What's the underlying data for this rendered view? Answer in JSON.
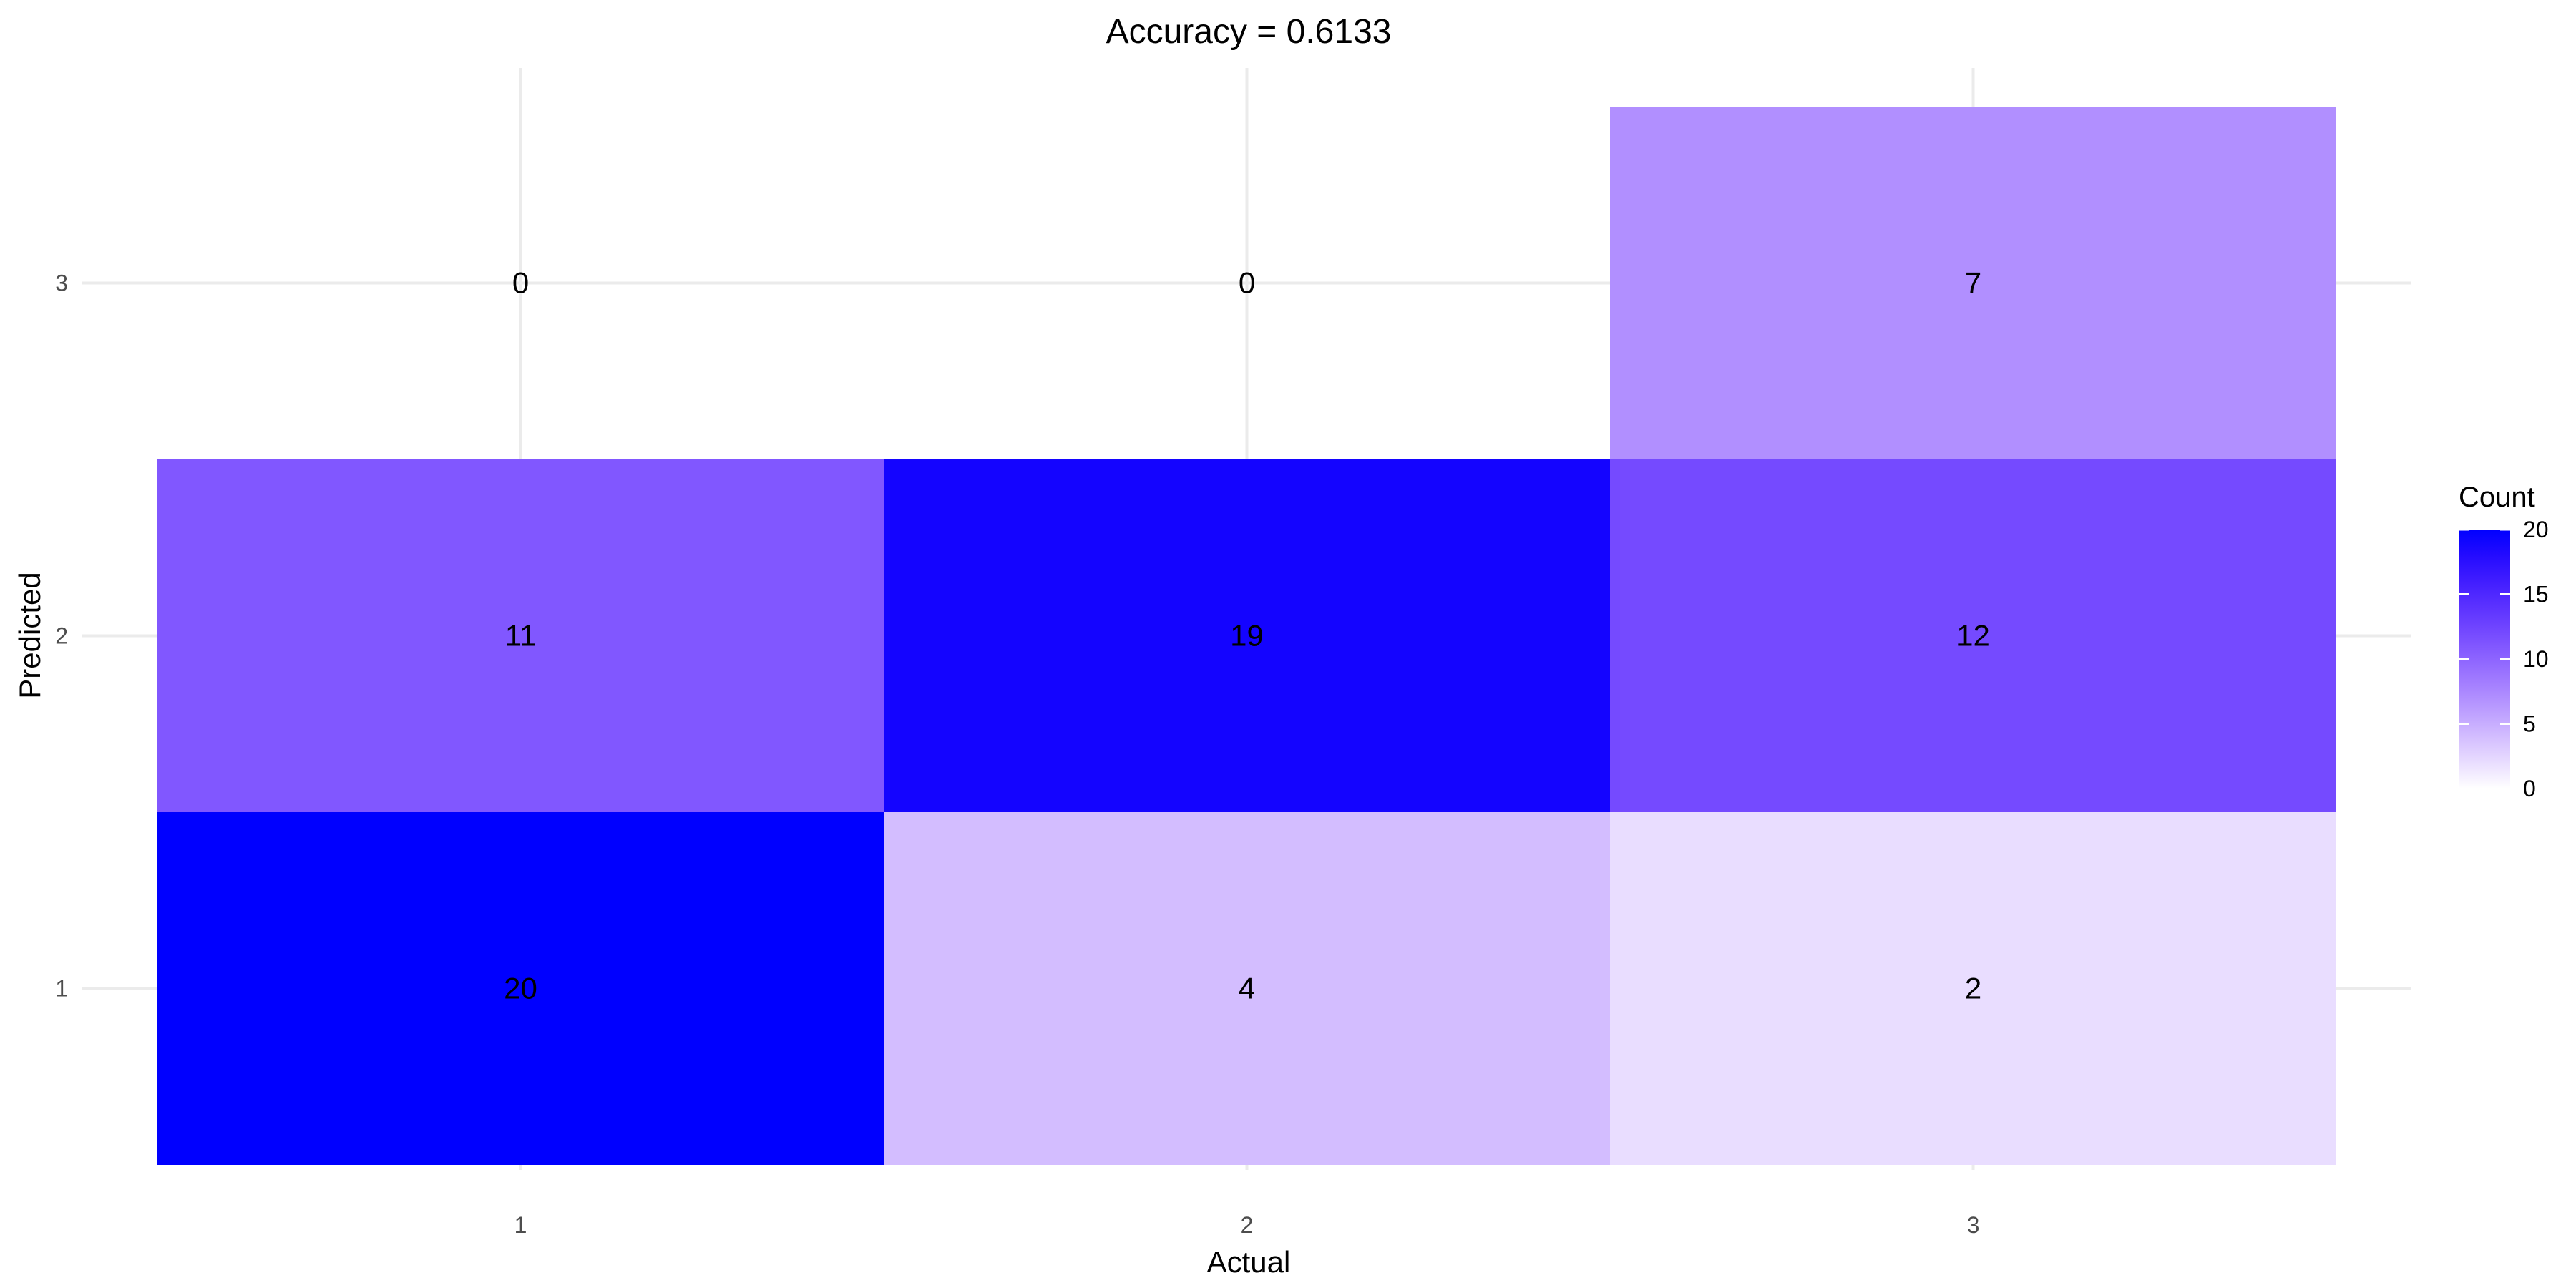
{
  "chart_data": {
    "type": "heatmap",
    "title": "Accuracy = 0.6133",
    "xlabel": "Actual",
    "ylabel": "Predicted",
    "x_categories": [
      "1",
      "2",
      "3"
    ],
    "y_categories": [
      "1",
      "2",
      "3"
    ],
    "cells": [
      {
        "actual": "1",
        "predicted": "1",
        "count": 20
      },
      {
        "actual": "2",
        "predicted": "1",
        "count": 4
      },
      {
        "actual": "3",
        "predicted": "1",
        "count": 2
      },
      {
        "actual": "1",
        "predicted": "2",
        "count": 11
      },
      {
        "actual": "2",
        "predicted": "2",
        "count": 19
      },
      {
        "actual": "3",
        "predicted": "2",
        "count": 12
      },
      {
        "actual": "1",
        "predicted": "3",
        "count": 0
      },
      {
        "actual": "2",
        "predicted": "3",
        "count": 0
      },
      {
        "actual": "3",
        "predicted": "3",
        "count": 7
      }
    ],
    "legend": {
      "title": "Count",
      "range": [
        0,
        20
      ],
      "ticks": [
        0,
        5,
        10,
        15,
        20
      ],
      "placement": "right"
    },
    "color_low": "#ffffff",
    "color_high": "#0000ff",
    "grid": true
  }
}
